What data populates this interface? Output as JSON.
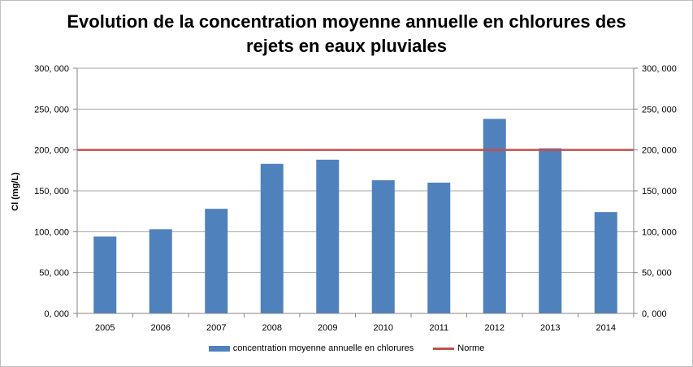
{
  "chart_data": {
    "type": "bar",
    "title_line1": "Evolution de la concentration moyenne annuelle en chlorures des",
    "title_line2": "rejets en eaux pluviales",
    "ylabel": "Cl (mg/L)",
    "xlabel": "",
    "categories": [
      "2005",
      "2006",
      "2007",
      "2008",
      "2009",
      "2010",
      "2011",
      "2012",
      "2013",
      "2014"
    ],
    "series": [
      {
        "name": "concentration moyenne annuelle en chlorures",
        "values": [
          94,
          103,
          128,
          183,
          188,
          163,
          160,
          238,
          202,
          124
        ],
        "color": "#4f81bd"
      }
    ],
    "reference_line": {
      "name": "Norme",
      "value": 200,
      "color": "#c0504d"
    },
    "ylim": [
      0,
      300
    ],
    "yticks": [
      "0, 000",
      "50, 000",
      "100, 000",
      "150, 000",
      "200, 000",
      "250, 000",
      "300, 000"
    ],
    "ytick_values": [
      0,
      50,
      100,
      150,
      200,
      250,
      300
    ],
    "secondary_axis": "right, same scale",
    "grid": "horizontal",
    "legend_position": "bottom"
  }
}
